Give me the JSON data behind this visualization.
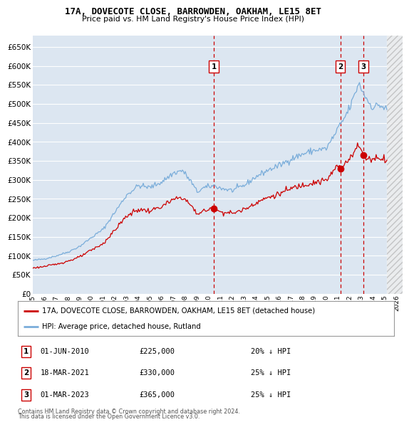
{
  "title": "17A, DOVECOTE CLOSE, BARROWDEN, OAKHAM, LE15 8ET",
  "subtitle": "Price paid vs. HM Land Registry's House Price Index (HPI)",
  "ylim": [
    0,
    680000
  ],
  "yticks": [
    0,
    50000,
    100000,
    150000,
    200000,
    250000,
    300000,
    350000,
    400000,
    450000,
    500000,
    550000,
    600000,
    650000
  ],
  "xlim_start": 1995.0,
  "xlim_end": 2026.5,
  "background_color": "#ffffff",
  "plot_bg_color": "#dce6f1",
  "grid_color": "#ffffff",
  "hpi_color": "#7aadda",
  "price_color": "#cc0000",
  "vline_color": "#cc0000",
  "hatch_start": 2025.17,
  "legend_label_price": "17A, DOVECOTE CLOSE, BARROWDEN, OAKHAM, LE15 8ET (detached house)",
  "legend_label_hpi": "HPI: Average price, detached house, Rutland",
  "transactions": [
    {
      "label": "1",
      "date_num": 2010.42,
      "price": 225000,
      "text": "01-JUN-2010",
      "amount": "£225,000",
      "pct": "20% ↓ HPI"
    },
    {
      "label": "2",
      "date_num": 2021.21,
      "price": 330000,
      "text": "18-MAR-2021",
      "amount": "£330,000",
      "pct": "25% ↓ HPI"
    },
    {
      "label": "3",
      "date_num": 2023.17,
      "price": 365000,
      "text": "01-MAR-2023",
      "amount": "£365,000",
      "pct": "25% ↓ HPI"
    }
  ],
  "footer1": "Contains HM Land Registry data © Crown copyright and database right 2024.",
  "footer2": "This data is licensed under the Open Government Licence v3.0."
}
